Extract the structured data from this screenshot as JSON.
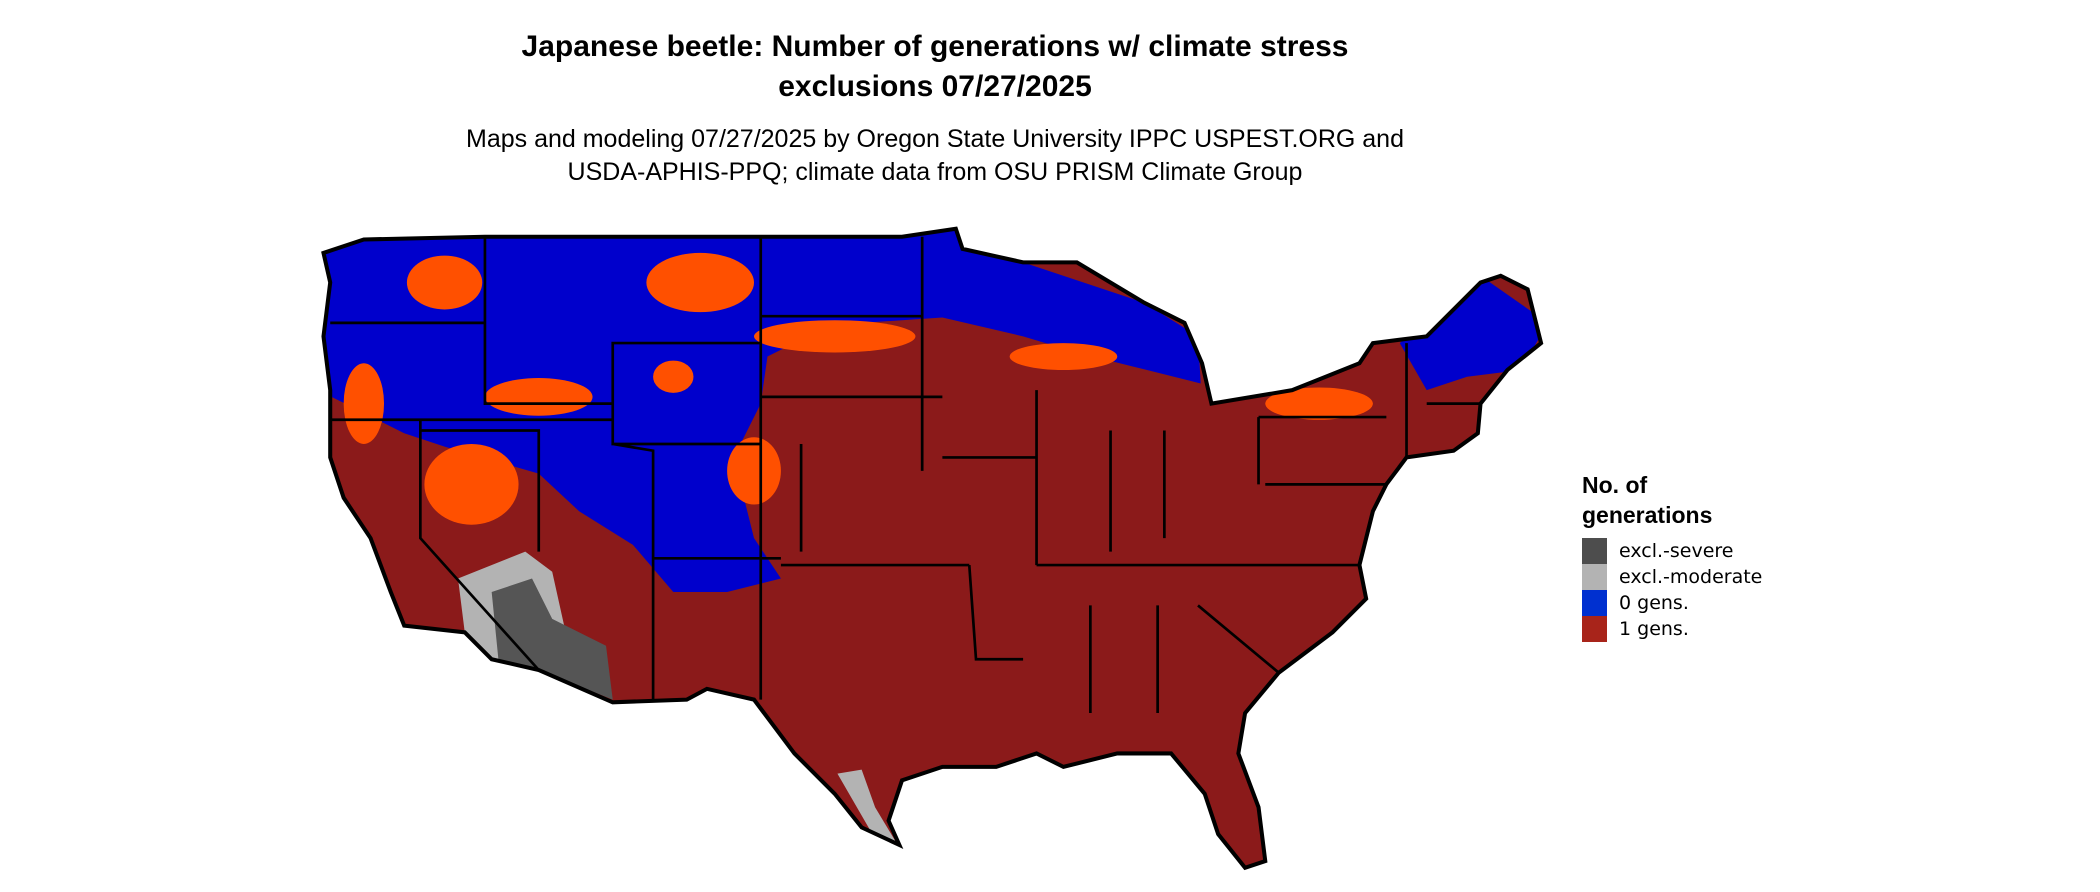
{
  "title": {
    "line1": "Japanese beetle: Number of generations w/ climate stress",
    "line2": "exclusions 07/27/2025"
  },
  "subtitle": {
    "line1": "Maps and modeling 07/27/2025 by Oregon State University IPPC USPEST.ORG and",
    "line2": "USDA-APHIS-PPQ; climate data from OSU PRISM Climate Group"
  },
  "map": {
    "region": "Contiguous United States",
    "colors": {
      "one_gen": "#8b1a1a",
      "zero_gen": "#0000cc",
      "transition": "#ff5000",
      "excl_severe": "#555555",
      "excl_moderate": "#b3b3b3",
      "border": "#000000"
    }
  },
  "legend": {
    "title_line1": "No. of",
    "title_line2": "generations",
    "items": [
      {
        "label": "excl.-severe",
        "color": "#4d4d4d"
      },
      {
        "label": "excl.-moderate",
        "color": "#b3b3b3"
      },
      {
        "label": "0 gens.",
        "color": "#0030d0"
      },
      {
        "label": "1 gens.",
        "color": "#a8241a"
      }
    ]
  }
}
